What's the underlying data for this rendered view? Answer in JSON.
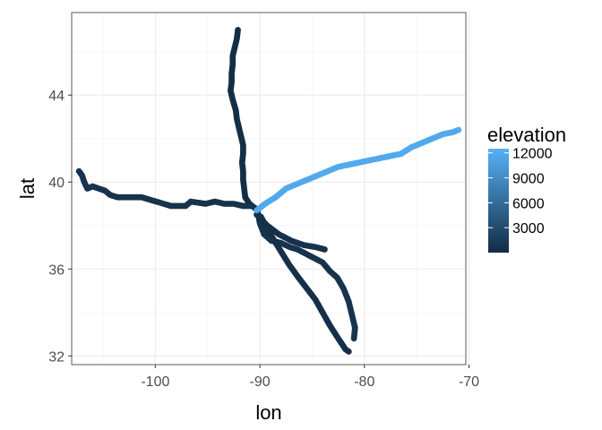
{
  "chart_data": {
    "type": "scatter",
    "xlabel": "lon",
    "ylabel": "lat",
    "xlim": [
      -108.0,
      -70.3
    ],
    "ylim": [
      31.6,
      47.8
    ],
    "x_ticks": [
      -100,
      -90,
      -80,
      -70
    ],
    "x_tick_labels": [
      "-100",
      "-90",
      "-80",
      "-70"
    ],
    "y_ticks": [
      32,
      36,
      40,
      44
    ],
    "y_tick_labels": [
      "32",
      "36",
      "40",
      "44"
    ],
    "grid": true,
    "legend": {
      "title": "elevation",
      "placement": "right",
      "range": [
        0,
        12500
      ],
      "breaks": [
        3000,
        6000,
        9000,
        12000
      ],
      "labels": [
        "3000",
        "6000",
        "9000",
        "12000"
      ],
      "low_color": "#132B43",
      "high_color": "#56B1F7"
    },
    "series": [
      {
        "points": [
          [
            -92.1,
            47.0
          ],
          [
            -92.2,
            46.6
          ],
          [
            -92.4,
            46.2
          ],
          [
            -92.6,
            45.8
          ],
          [
            -92.6,
            45.4
          ],
          [
            -92.7,
            45.0
          ],
          [
            -92.7,
            44.6
          ],
          [
            -92.8,
            44.2
          ],
          [
            -92.6,
            43.8
          ],
          [
            -92.3,
            43.3
          ],
          [
            -92.2,
            42.9
          ],
          [
            -92.0,
            42.5
          ],
          [
            -91.8,
            42.1
          ],
          [
            -91.6,
            41.7
          ],
          [
            -91.6,
            41.3
          ],
          [
            -91.7,
            40.9
          ],
          [
            -91.6,
            40.5
          ],
          [
            -91.6,
            40.1
          ],
          [
            -91.5,
            39.7
          ],
          [
            -91.4,
            39.3
          ],
          [
            -91.0,
            39.0
          ],
          [
            -90.2,
            38.7
          ]
        ],
        "elevation": 300
      },
      {
        "points": [
          [
            -107.3,
            40.5
          ],
          [
            -107.0,
            40.3
          ],
          [
            -106.8,
            40.0
          ],
          [
            -106.5,
            39.7
          ],
          [
            -106.0,
            39.8
          ],
          [
            -105.4,
            39.7
          ],
          [
            -104.8,
            39.6
          ],
          [
            -104.3,
            39.4
          ],
          [
            -103.6,
            39.3
          ],
          [
            -102.8,
            39.3
          ],
          [
            -102.0,
            39.3
          ],
          [
            -101.3,
            39.3
          ],
          [
            -100.6,
            39.2
          ],
          [
            -99.9,
            39.1
          ],
          [
            -99.2,
            39.0
          ],
          [
            -98.5,
            38.9
          ],
          [
            -97.8,
            38.9
          ],
          [
            -97.1,
            38.9
          ],
          [
            -96.6,
            39.1
          ],
          [
            -95.2,
            39.0
          ],
          [
            -94.3,
            39.1
          ],
          [
            -93.4,
            39.0
          ],
          [
            -92.5,
            39.0
          ],
          [
            -91.6,
            38.9
          ],
          [
            -90.8,
            38.9
          ]
        ],
        "elevation": 700
      },
      {
        "points": [
          [
            -90.2,
            38.6
          ],
          [
            -90.0,
            38.1
          ],
          [
            -89.6,
            37.6
          ],
          [
            -88.9,
            37.3
          ],
          [
            -88.0,
            37.2
          ],
          [
            -87.1,
            37.0
          ],
          [
            -86.4,
            36.9
          ],
          [
            -85.6,
            36.7
          ],
          [
            -84.8,
            36.5
          ],
          [
            -84.0,
            36.3
          ],
          [
            -83.3,
            35.9
          ],
          [
            -82.6,
            35.6
          ],
          [
            -82.0,
            35.1
          ],
          [
            -81.5,
            34.5
          ],
          [
            -81.2,
            33.9
          ],
          [
            -80.9,
            33.3
          ],
          [
            -81.0,
            32.8
          ]
        ],
        "elevation": 700
      },
      {
        "points": [
          [
            -90.3,
            38.5
          ],
          [
            -89.3,
            38.0
          ],
          [
            -88.2,
            37.6
          ],
          [
            -87.0,
            37.3
          ],
          [
            -85.8,
            37.1
          ],
          [
            -84.6,
            37.0
          ],
          [
            -83.8,
            36.9
          ]
        ],
        "elevation": 600
      },
      {
        "points": [
          [
            -89.9,
            38.4
          ],
          [
            -89.0,
            37.6
          ],
          [
            -88.1,
            36.9
          ],
          [
            -87.2,
            36.2
          ],
          [
            -86.3,
            35.6
          ],
          [
            -85.5,
            35.1
          ],
          [
            -84.7,
            34.6
          ],
          [
            -84.0,
            34.0
          ],
          [
            -83.3,
            33.4
          ],
          [
            -82.5,
            32.8
          ],
          [
            -81.8,
            32.3
          ],
          [
            -81.5,
            32.2
          ]
        ],
        "elevation": 500
      },
      {
        "points": [
          [
            -90.3,
            38.7
          ],
          [
            -89.5,
            39.0
          ],
          [
            -88.5,
            39.3
          ],
          [
            -87.5,
            39.7
          ],
          [
            -86.5,
            39.9
          ],
          [
            -85.5,
            40.1
          ],
          [
            -84.5,
            40.3
          ],
          [
            -83.5,
            40.5
          ],
          [
            -82.5,
            40.7
          ],
          [
            -81.5,
            40.8
          ],
          [
            -80.5,
            40.9
          ],
          [
            -79.5,
            41.0
          ],
          [
            -78.5,
            41.1
          ],
          [
            -77.5,
            41.2
          ],
          [
            -76.5,
            41.3
          ],
          [
            -75.5,
            41.6
          ],
          [
            -74.5,
            41.8
          ],
          [
            -73.5,
            42.0
          ],
          [
            -72.5,
            42.2
          ],
          [
            -71.5,
            42.3
          ],
          [
            -71.0,
            42.4
          ]
        ],
        "elevation": 11800
      }
    ]
  }
}
